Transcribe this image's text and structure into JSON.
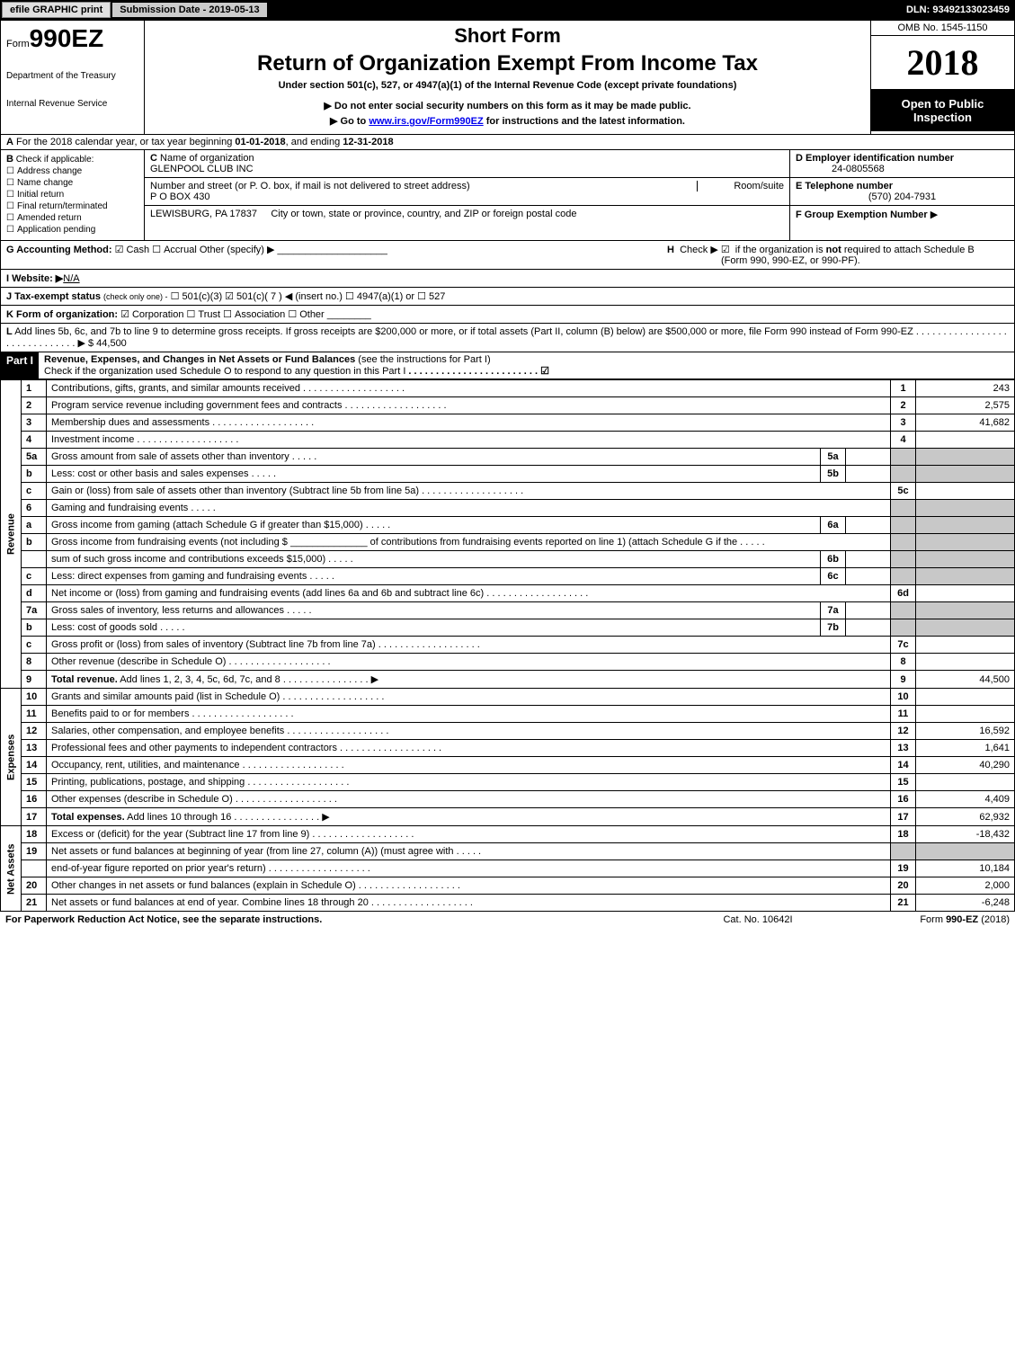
{
  "top": {
    "efile": "efile GRAPHIC print",
    "sub_label": "Submission Date - ",
    "sub_date": "2019-05-13",
    "dln_label": "DLN: ",
    "dln": "93492133023459"
  },
  "header": {
    "form_prefix": "Form",
    "form_num": "990EZ",
    "dept": "Department of the Treasury",
    "irs": "Internal Revenue Service",
    "short": "Short Form",
    "title": "Return of Organization Exempt From Income Tax",
    "under": "Under section 501(c), 527, or 4947(a)(1) of the Internal Revenue Code (except private foundations)",
    "note1_pre": "▶ Do not enter social security numbers on this form as it may be made public.",
    "note2_pre": "▶ Go to ",
    "note2_link": "www.irs.gov/Form990EZ",
    "note2_post": " for instructions and the latest information.",
    "omb": "OMB No. 1545-1150",
    "year": "2018",
    "open1": "Open to Public",
    "open2": "Inspection"
  },
  "A": {
    "text_pre": "For the 2018 calendar year, or tax year beginning ",
    "begin": "01-01-2018",
    "mid": ", and ending ",
    "end": "12-31-2018"
  },
  "B": {
    "label": "Check if applicable:",
    "items": [
      "Address change",
      "Name change",
      "Initial return",
      "Final return/terminated",
      "Amended return",
      "Application pending"
    ]
  },
  "C": {
    "label": "C",
    "name_label": "Name of organization",
    "name": "GLENPOOL CLUB INC",
    "street_label": "Number and street (or P. O. box, if mail is not delivered to street address)",
    "room_label": "Room/suite",
    "street": "P O BOX 430",
    "city_label": "City or town, state or province, country, and ZIP or foreign postal code",
    "city": "LEWISBURG, PA  17837"
  },
  "D": {
    "label": "D Employer identification number",
    "val": "24-0805568"
  },
  "E": {
    "label": "E Telephone number",
    "val": "(570) 204-7931"
  },
  "F": {
    "label": "F Group Exemption Number",
    "arrow": "▶"
  },
  "G": {
    "label": "G Accounting Method:",
    "cash": "Cash",
    "accrual": "Accrual",
    "other": "Other (specify) ▶"
  },
  "H": {
    "label": "H",
    "text1": "Check ▶",
    "text2": "if the organization is ",
    "not": "not",
    "text3": " required to attach Schedule B",
    "text4": "(Form 990, 990-EZ, or 990-PF)."
  },
  "I": {
    "label": "I Website: ▶",
    "val": "N/A"
  },
  "J": {
    "label": "J Tax-exempt status",
    "note": "(check only one) -",
    "o1": "501(c)(3)",
    "o2": "501(c)( 7 ) ◀ (insert no.)",
    "o3": "4947(a)(1) or",
    "o4": "527"
  },
  "K": {
    "label": "K Form of organization:",
    "o1": "Corporation",
    "o2": "Trust",
    "o3": "Association",
    "o4": "Other"
  },
  "L": {
    "text": "Add lines 5b, 6c, and 7b to line 9 to determine gross receipts. If gross receipts are $200,000 or more, or if total assets (Part II, column (B) below) are $500,000 or more, file Form 990 instead of Form 990-EZ",
    "amt": "▶ $ 44,500"
  },
  "part1": {
    "hdr": "Part I",
    "title": "Revenue, Expenses, and Changes in Net Assets or Fund Balances",
    "note": " (see the instructions for Part I)",
    "check": "Check if the organization used Schedule O to respond to any question in this Part I"
  },
  "sections": {
    "revenue": "Revenue",
    "expenses": "Expenses",
    "netassets": "Net Assets"
  },
  "rows": [
    {
      "n": "1",
      "d": "Contributions, gifts, grants, and similar amounts received",
      "rn": "1",
      "a": "243"
    },
    {
      "n": "2",
      "d": "Program service revenue including government fees and contracts",
      "rn": "2",
      "a": "2,575"
    },
    {
      "n": "3",
      "d": "Membership dues and assessments",
      "rn": "3",
      "a": "41,682"
    },
    {
      "n": "4",
      "d": "Investment income",
      "rn": "4",
      "a": ""
    },
    {
      "n": "5a",
      "d": "Gross amount from sale of assets other than inventory",
      "mid": "5a",
      "gray": true
    },
    {
      "n": "b",
      "d": "Less: cost or other basis and sales expenses",
      "mid": "5b",
      "gray": true
    },
    {
      "n": "c",
      "d": "Gain or (loss) from sale of assets other than inventory (Subtract line 5b from line 5a)",
      "rn": "5c",
      "a": ""
    },
    {
      "n": "6",
      "d": "Gaming and fundraising events",
      "gray": true,
      "noright": true
    },
    {
      "n": "a",
      "d": "Gross income from gaming (attach Schedule G if greater than $15,000)",
      "mid": "6a",
      "gray": true
    },
    {
      "n": "b",
      "d": "Gross income from fundraising events (not including $ ______________ of contributions from fundraising events reported on line 1) (attach Schedule G if the",
      "gray": true,
      "noright": true
    },
    {
      "n": "",
      "d": "sum of such gross income and contributions exceeds $15,000)",
      "mid": "6b",
      "gray": true
    },
    {
      "n": "c",
      "d": "Less: direct expenses from gaming and fundraising events",
      "mid": "6c",
      "gray": true
    },
    {
      "n": "d",
      "d": "Net income or (loss) from gaming and fundraising events (add lines 6a and 6b and subtract line 6c)",
      "rn": "6d",
      "a": ""
    },
    {
      "n": "7a",
      "d": "Gross sales of inventory, less returns and allowances",
      "mid": "7a",
      "gray": true
    },
    {
      "n": "b",
      "d": "Less: cost of goods sold",
      "mid": "7b",
      "gray": true
    },
    {
      "n": "c",
      "d": "Gross profit or (loss) from sales of inventory (Subtract line 7b from line 7a)",
      "rn": "7c",
      "a": ""
    },
    {
      "n": "8",
      "d": "Other revenue (describe in Schedule O)",
      "rn": "8",
      "a": ""
    },
    {
      "n": "9",
      "d": "Total revenue. Add lines 1, 2, 3, 4, 5c, 6d, 7c, and 8",
      "rn": "9",
      "a": "44,500",
      "bold": true,
      "arrow": true
    }
  ],
  "exp_rows": [
    {
      "n": "10",
      "d": "Grants and similar amounts paid (list in Schedule O)",
      "rn": "10",
      "a": ""
    },
    {
      "n": "11",
      "d": "Benefits paid to or for members",
      "rn": "11",
      "a": ""
    },
    {
      "n": "12",
      "d": "Salaries, other compensation, and employee benefits",
      "rn": "12",
      "a": "16,592"
    },
    {
      "n": "13",
      "d": "Professional fees and other payments to independent contractors",
      "rn": "13",
      "a": "1,641"
    },
    {
      "n": "14",
      "d": "Occupancy, rent, utilities, and maintenance",
      "rn": "14",
      "a": "40,290"
    },
    {
      "n": "15",
      "d": "Printing, publications, postage, and shipping",
      "rn": "15",
      "a": ""
    },
    {
      "n": "16",
      "d": "Other expenses (describe in Schedule O)",
      "rn": "16",
      "a": "4,409"
    },
    {
      "n": "17",
      "d": "Total expenses. Add lines 10 through 16",
      "rn": "17",
      "a": "62,932",
      "bold": true,
      "arrow": true
    }
  ],
  "na_rows": [
    {
      "n": "18",
      "d": "Excess or (deficit) for the year (Subtract line 17 from line 9)",
      "rn": "18",
      "a": "-18,432"
    },
    {
      "n": "19",
      "d": "Net assets or fund balances at beginning of year (from line 27, column (A)) (must agree with",
      "gray": true,
      "noright": true
    },
    {
      "n": "",
      "d": "end-of-year figure reported on prior year's return)",
      "rn": "19",
      "a": "10,184"
    },
    {
      "n": "20",
      "d": "Other changes in net assets or fund balances (explain in Schedule O)",
      "rn": "20",
      "a": "2,000"
    },
    {
      "n": "21",
      "d": "Net assets or fund balances at end of year. Combine lines 18 through 20",
      "rn": "21",
      "a": "-6,248"
    }
  ],
  "footer": {
    "left": "For Paperwork Reduction Act Notice, see the separate instructions.",
    "mid": "Cat. No. 10642I",
    "right_pre": "Form ",
    "right_form": "990-EZ",
    "right_post": " (2018)"
  },
  "colors": {
    "black": "#000000",
    "gray_cell": "#c8c8c8",
    "link": "#0000ee"
  }
}
